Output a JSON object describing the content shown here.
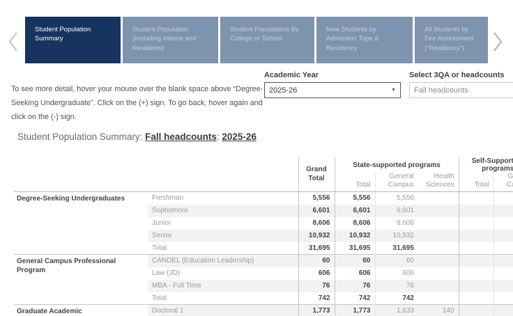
{
  "nav": {
    "left_chevron_icon": "chevron-left-icon",
    "right_chevron_icon": "chevron-right-icon",
    "tabs": [
      {
        "label": "Student Population Summary",
        "selected": true
      },
      {
        "label": "Student Population (Including Interns and Residents)",
        "selected": false
      },
      {
        "label": "Student Populations By College or School",
        "selected": false
      },
      {
        "label": "New Students by Admission Type & Residency",
        "selected": false
      },
      {
        "label": "All Students by Fee Assessment (“Residency”)",
        "selected": false
      }
    ],
    "colors": {
      "selected_tab": "#17335F",
      "unselected_tab": "#7E93AD"
    }
  },
  "instructions": "To see more detail, hover your mouse over the blank space above “Degree-Seeking Undergraduate”. Click on the (+) sign. To go back, hover again and click on the (-) sign.",
  "filters": {
    "academic_year": {
      "label": "Academic Year",
      "value": "2025-26",
      "icon": "caret-down-icon",
      "caret": "▼"
    },
    "metric": {
      "label": "Select 3QA or headcounts",
      "value": "Fall headcounts"
    }
  },
  "title": {
    "prefix": "Student Population Summary: ",
    "metric": "Fall headcounts",
    "separator": ": ",
    "year": "2025-26"
  },
  "table": {
    "header": {
      "grand_total": "Grand Total",
      "state_group": "State-supported programs",
      "self_group": "Self-Supporting programs",
      "state_sub": [
        "Total",
        "General Campus",
        "Health Sciences"
      ],
      "self_sub": [
        "Total",
        "General Campus"
      ]
    },
    "groups": [
      {
        "name": "Degree-Seeking Undergraduates",
        "rows": [
          {
            "label": "Freshman",
            "total_row": false,
            "cells": [
              "5,556",
              "5,556",
              "5,556",
              "",
              "",
              ""
            ]
          },
          {
            "label": "Sophomore",
            "total_row": false,
            "cells": [
              "6,601",
              "6,601",
              "6,601",
              "",
              "",
              ""
            ]
          },
          {
            "label": "Junior",
            "total_row": false,
            "cells": [
              "8,606",
              "8,606",
              "8,606",
              "",
              "",
              ""
            ]
          },
          {
            "label": "Senior",
            "total_row": false,
            "cells": [
              "10,932",
              "10,932",
              "10,932",
              "",
              "",
              ""
            ]
          },
          {
            "label": "Total",
            "total_row": true,
            "cells": [
              "31,695",
              "31,695",
              "31,695",
              "",
              "",
              ""
            ]
          }
        ]
      },
      {
        "name": "General Campus Professional Program",
        "rows": [
          {
            "label": "CANDEL (Education Leadership)",
            "total_row": false,
            "cells": [
              "60",
              "60",
              "60",
              "",
              "",
              ""
            ]
          },
          {
            "label": "Law (JD)",
            "total_row": false,
            "cells": [
              "606",
              "606",
              "606",
              "",
              "",
              ""
            ]
          },
          {
            "label": "MBA - Full Time",
            "total_row": false,
            "cells": [
              "76",
              "76",
              "76",
              "",
              "",
              ""
            ]
          },
          {
            "label": "Total",
            "total_row": true,
            "cells": [
              "742",
              "742",
              "742",
              "",
              "",
              ""
            ]
          }
        ]
      },
      {
        "name": "Graduate Academic",
        "rows": [
          {
            "label": "Doctoral 1",
            "total_row": false,
            "cells": [
              "1,773",
              "1,773",
              "1,633",
              "140",
              "",
              ""
            ]
          }
        ]
      }
    ]
  }
}
